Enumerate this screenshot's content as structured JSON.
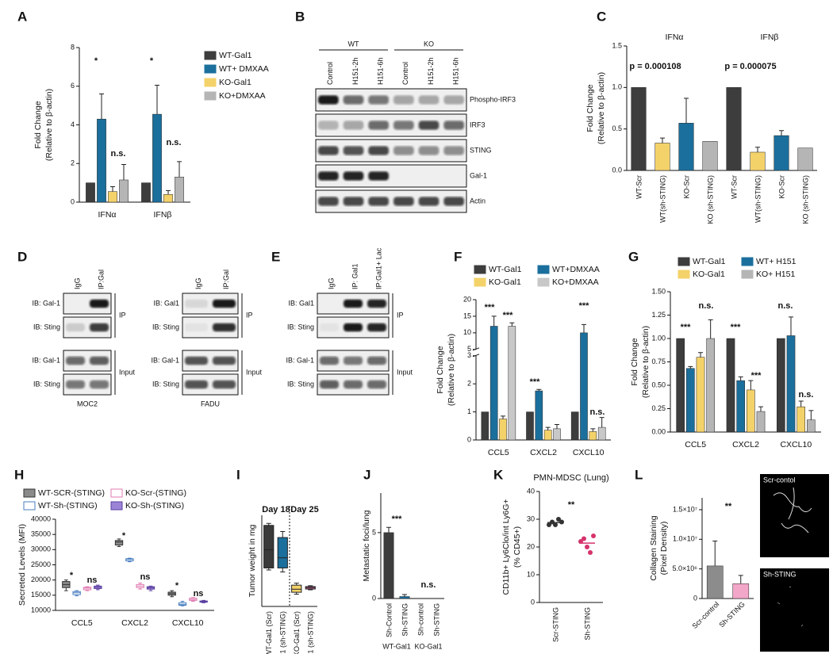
{
  "chart_data": [
    {
      "type": "bar",
      "panel": "A",
      "y_label": [
        "Fold Change",
        "(Relative to β-actin)"
      ],
      "categories": [
        "IFNα",
        "IFNβ"
      ],
      "series": [
        {
          "name": "WT-Gal1",
          "color": "#3d3d3d",
          "values": [
            1,
            1
          ]
        },
        {
          "name": "WT+ DMXAA",
          "color": "#1b6f9c",
          "values": [
            4.3,
            4.55
          ],
          "errors": [
            1.3,
            1.5
          ]
        },
        {
          "name": "KO-Gal1",
          "color": "#f4d26a",
          "values": [
            0.55,
            0.4
          ],
          "errors": [
            0.25,
            0.2
          ]
        },
        {
          "name": "KO+DMXAA",
          "color": "#b5b5b5",
          "values": [
            1.15,
            1.3
          ],
          "errors": [
            0.8,
            0.8
          ]
        }
      ],
      "ylim": [
        0,
        8
      ],
      "yticks": [
        0,
        2,
        4,
        6,
        8
      ],
      "annotations": [
        "*",
        "n.s.",
        "*",
        "n.s."
      ]
    },
    {
      "type": "bar",
      "panel": "C",
      "y_label": [
        "Fold Change",
        "(Relative to β-actin)"
      ],
      "groups": [
        "IFNα",
        "IFNβ"
      ],
      "categories": [
        "WT-Scr",
        "WT(sh-STING)",
        "KO-Scr",
        "KO (sh-STING)",
        "WT-Scr",
        "WT(sh-STING)",
        "KO-Scr",
        "KO (sh-STING)"
      ],
      "values": [
        1,
        0.33,
        0.57,
        0.35,
        1,
        0.22,
        0.42,
        0.27
      ],
      "errors": [
        null,
        0.06,
        0.3,
        null,
        null,
        0.06,
        0.06,
        null
      ],
      "colors": [
        "#3d3d3d",
        "#f4d26a",
        "#1b6f9c",
        "#b5b5b5",
        "#3d3d3d",
        "#f4d26a",
        "#1b6f9c",
        "#b5b5b5"
      ],
      "ylim": [
        0,
        1.5
      ],
      "yticks": [
        {
          "value": 0,
          "label": "0.0"
        },
        0.5,
        {
          "value": 1,
          "label": "1.0"
        },
        1.5
      ],
      "annotations": [
        "p = 0.000108",
        "p = 0.000075"
      ]
    },
    {
      "type": "bar",
      "panel": "F",
      "y_label": [
        "Fold Change",
        "(Relative to β-actin)"
      ],
      "categories": [
        "CCL5",
        "CXCL2",
        "CXCL10"
      ],
      "series": [
        {
          "name": "WT-Gal1",
          "color": "#3d3d3d",
          "values": [
            1,
            1,
            1
          ]
        },
        {
          "name": "WT+DMXAA",
          "color": "#1b6f9c",
          "values": [
            12,
            1.75,
            10
          ],
          "errors": [
            3,
            0.05,
            2.5
          ]
        },
        {
          "name": "KO-Gal1",
          "color": "#f4d26a",
          "values": [
            0.75,
            0.35,
            0.3
          ],
          "errors": [
            0.1,
            0.1,
            0.1
          ]
        },
        {
          "name": "KO+DMXAA",
          "color": "#c8c8c8",
          "values": [
            12,
            0.4,
            0.45
          ],
          "errors": [
            1,
            0.15,
            0.35
          ]
        }
      ],
      "ylim": [
        0,
        20
      ],
      "ybreak": [
        3,
        5
      ],
      "yticks": [
        0,
        1,
        2,
        3,
        5,
        10,
        15,
        20
      ],
      "annotations": [
        "***",
        "***",
        "***",
        "***",
        "n.s."
      ]
    },
    {
      "type": "bar",
      "panel": "G",
      "y_label": [
        "Fold Change",
        "(Relative to β-actin)"
      ],
      "categories": [
        "CCL5",
        "CXCL2",
        "CXCL10"
      ],
      "series": [
        {
          "name": "WT-Gal1",
          "color": "#3d3d3d",
          "values": [
            1,
            1,
            1
          ]
        },
        {
          "name": "WT+ H151",
          "color": "#1b6f9c",
          "values": [
            0.68,
            0.55,
            1.03
          ],
          "errors": [
            0.02,
            0.04,
            0.2
          ]
        },
        {
          "name": "KO-Gal1",
          "color": "#f4d26a",
          "values": [
            0.8,
            0.45,
            0.27
          ],
          "errors": [
            0.05,
            0.1,
            0.06
          ]
        },
        {
          "name": "KO+ H151",
          "color": "#b5b5b5",
          "values": [
            1.0,
            0.22,
            0.13
          ],
          "errors": [
            0.2,
            0.05,
            0.1
          ]
        }
      ],
      "ylim": [
        0,
        1.5
      ],
      "yticks": [
        {
          "value": 0,
          "label": "0.00"
        },
        0.25,
        {
          "value": 0.5,
          "label": "0.50"
        },
        0.75,
        {
          "value": 1,
          "label": "1.00"
        },
        1.25,
        {
          "value": 1.5,
          "label": "1.50"
        }
      ],
      "annotations": [
        "***",
        "n.s.",
        "***",
        "***",
        "n.s.",
        "n.s."
      ]
    },
    {
      "type": "box",
      "panel": "H",
      "y_label": [
        "Secreted Levels (MFI)"
      ],
      "categories": [
        "CCL5",
        "CXCL2",
        "CXCL10"
      ],
      "series": [
        {
          "name": "WT-SCR-(STING)",
          "color": "#333333",
          "fill": "#8a8a8a",
          "boxes": [
            [
              16500,
              17500,
              18500,
              19500,
              20000
            ],
            [
              31000,
              31500,
              32500,
              33000,
              33500
            ],
            [
              14500,
              15000,
              15500,
              16000,
              16500
            ]
          ]
        },
        {
          "name": "WT-Sh-(STING)",
          "color": "#4a7fc1",
          "fill": "#ffffff",
          "boxes": [
            [
              14800,
              15200,
              15800,
              16200,
              16500
            ],
            [
              26000,
              26300,
              26800,
              27000,
              27200
            ],
            [
              11500,
              11700,
              12000,
              12500,
              13000
            ]
          ]
        },
        {
          "name": "KO-Scr-(STING)",
          "color": "#e07ab0",
          "fill": "#ffffff",
          "boxes": [
            [
              16500,
              16800,
              17300,
              17600,
              17800
            ],
            [
              17000,
              17500,
              18000,
              18500,
              19000
            ],
            [
              13000,
              13300,
              13600,
              14000,
              14200
            ]
          ]
        },
        {
          "name": "KO-Sh-(STING)",
          "color": "#5a3fa0",
          "fill": "#9b84d6",
          "boxes": [
            [
              16800,
              17200,
              17600,
              18000,
              18300
            ],
            [
              16500,
              17000,
              17400,
              17800,
              18000
            ],
            [
              12500,
              12700,
              12900,
              13100,
              13300
            ]
          ]
        }
      ],
      "ylim": [
        10000,
        40000
      ],
      "yticks": [
        10000,
        15000,
        20000,
        25000,
        30000,
        35000,
        40000
      ],
      "annotations": [
        "*",
        "ns",
        "*",
        "ns",
        "*",
        "ns"
      ]
    },
    {
      "type": "box",
      "panel": "I",
      "y_label": [
        "Tumor weight in mg"
      ],
      "categories": [
        "WT-Gal1 (Scr)",
        "WT-Gal1 (sh-STING)",
        "KO-Gal1 (Scr)",
        "KO-Gal1 (sh-STING)"
      ],
      "boxes": [
        [
          180,
          190,
          280,
          400,
          410
        ],
        [
          170,
          190,
          240,
          340,
          370
        ],
        [
          60,
          70,
          85,
          105,
          115
        ],
        [
          82,
          86,
          93,
          98,
          102
        ]
      ],
      "colors": [
        "#3a3a3a",
        "#1b6f9c",
        "#f4d26a",
        "#d66aa0"
      ],
      "ylim": [
        0,
        450
      ],
      "annotations": [
        "Day 18",
        "Day 25"
      ]
    },
    {
      "type": "bar",
      "panel": "J",
      "y_label": [
        "Metastatic foci/lung"
      ],
      "groups": [
        "WT-Gal1",
        "KO-Gal1"
      ],
      "categories": [
        "Sh-Control",
        "Sh-STING",
        "Sh-control",
        "Sh-STING"
      ],
      "values": [
        5,
        0.15,
        0,
        0
      ],
      "errors": [
        0.4,
        0.15,
        null,
        null
      ],
      "colors": [
        "#3d3d3d",
        "#1b6f9c",
        "#d9a23a",
        "#d66aa0"
      ],
      "ylim": [
        0,
        8
      ],
      "yticks": [
        0,
        5
      ],
      "annotations": [
        "***",
        "n.s."
      ]
    },
    {
      "type": "scatter",
      "panel": "K",
      "title": "PMN-MDSC (Lung)",
      "y_label": [
        "CD11b+ Ly6Clo/int Ly6G+",
        "(% CD45+)"
      ],
      "categories": [
        "Scr-STING",
        "Sh-STING"
      ],
      "points": [
        [
          28,
          29,
          28,
          30,
          29
        ],
        [
          22,
          23,
          20,
          18,
          24
        ]
      ],
      "means": [
        28.8,
        21.4
      ],
      "colors": [
        "#333333",
        "#d6336c"
      ],
      "ylim": [
        0,
        40
      ],
      "yticks": [
        0,
        10,
        20,
        30,
        40
      ],
      "annotations": [
        "**"
      ]
    },
    {
      "type": "bar",
      "panel": "L",
      "y_label": [
        "Collagen Staining",
        "(Pixel Density)"
      ],
      "categories": [
        "Scr-control",
        "Sh-STING"
      ],
      "values": [
        5500000,
        2500000
      ],
      "errors": [
        4200000,
        1400000
      ],
      "colors": [
        "#8c8c8c",
        "#f2a6c8"
      ],
      "ylim": [
        0,
        17000000
      ],
      "yticks": [
        0,
        {
          "value": 5000000,
          "label": "5.0×10⁶"
        },
        {
          "value": 10000000,
          "label": "1.0×10⁷"
        },
        {
          "value": 15000000,
          "label": "1.5×10⁷"
        }
      ],
      "annotations": [
        "**"
      ],
      "image_labels": [
        "Scr-contol",
        "Sh-STING"
      ]
    }
  ],
  "blots": {
    "B": {
      "panel": "B",
      "groups": [
        "WT",
        "KO"
      ],
      "lanes": [
        "Control",
        "H151-2h",
        "H151-6h",
        "Control",
        "H151-2h",
        "H151-6h"
      ],
      "rows": [
        "Phospho-IRF3",
        "IRF3",
        "STING",
        "Gal-1",
        "Actin"
      ]
    },
    "D": {
      "panel": "D",
      "sets": [
        {
          "lanes": [
            "IgG",
            "IP:Gal"
          ],
          "sections": [
            {
              "label": "IP",
              "rows": [
                "IB: Gal-1",
                "IB: Sting"
              ]
            },
            {
              "label": "Input",
              "rows": [
                "IB: Gal-1",
                "IB: Sting"
              ]
            }
          ],
          "cell_line": "MOC2"
        },
        {
          "lanes": [
            "IgG",
            "IP:Gal"
          ],
          "sections": [
            {
              "label": "IP",
              "rows": [
                "IB: Gal1",
                "IB: Sting"
              ]
            },
            {
              "label": "Input",
              "rows": [
                "IB: Gal-1",
                "IB: Sting"
              ]
            }
          ],
          "cell_line": "FADU"
        }
      ]
    },
    "E": {
      "panel": "E",
      "lanes": [
        "IgG",
        "IP: Gal1",
        "IP:Gal1+ Lac"
      ],
      "sections": [
        {
          "label": "IP",
          "rows": [
            "IB: Gal1",
            "IB: Sting"
          ]
        },
        {
          "label": "Input",
          "rows": [
            "IB: Gal-1",
            "IB: Sting"
          ]
        }
      ]
    }
  }
}
